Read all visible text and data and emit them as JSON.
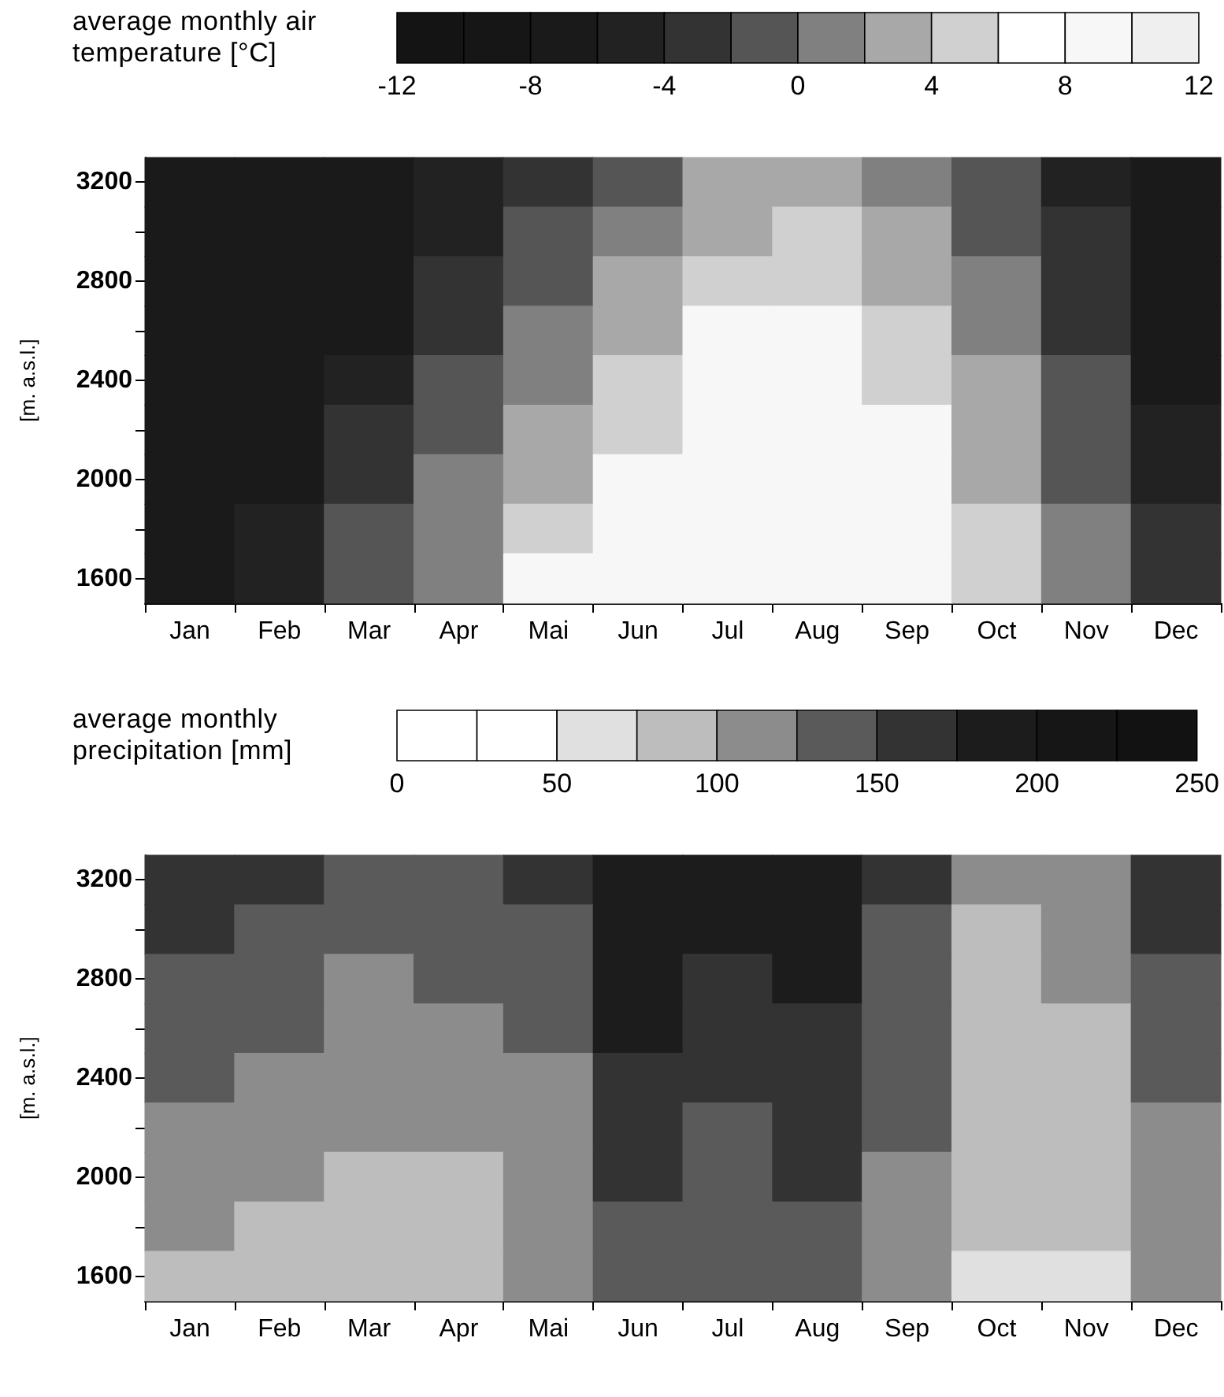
{
  "chart_data": [
    {
      "type": "heatmap",
      "clabel": "average monthly air temperature [°C]",
      "ylabel": "[m. a.s.l.]",
      "categories": [
        "Jan",
        "Feb",
        "Mar",
        "Apr",
        "Mai",
        "Jun",
        "Jul",
        "Aug",
        "Sep",
        "Oct",
        "Nov",
        "Dec"
      ],
      "y_categories": [
        "3200",
        null,
        "2800",
        null,
        "2400",
        null,
        "2000",
        null,
        "1600"
      ],
      "cells": [
        [
          -8,
          -8,
          -8,
          -5,
          -3,
          -1,
          3,
          3,
          1,
          -1,
          -5,
          -8
        ],
        [
          -8,
          -8,
          -8,
          -5,
          -1,
          1,
          3,
          5,
          3,
          -1,
          -3,
          -8
        ],
        [
          -8,
          -8,
          -8,
          -3,
          -1,
          3,
          5,
          5,
          3,
          1,
          -3,
          -8
        ],
        [
          -8,
          -8,
          -8,
          -3,
          1,
          3,
          9,
          9,
          5,
          1,
          -3,
          -8
        ],
        [
          -8,
          -8,
          -5,
          -1,
          1,
          5,
          9,
          9,
          5,
          3,
          -1,
          -8
        ],
        [
          -8,
          -8,
          -3,
          -1,
          3,
          5,
          9,
          9,
          9,
          3,
          -1,
          -5
        ],
        [
          -8,
          -8,
          -3,
          1,
          3,
          9,
          9,
          9,
          9,
          3,
          -1,
          -5
        ],
        [
          -8,
          -5,
          -1,
          1,
          5,
          9,
          9,
          9,
          9,
          5,
          1,
          -3
        ],
        [
          -8,
          -5,
          -1,
          1,
          9,
          9,
          9,
          9,
          9,
          5,
          1,
          -3
        ]
      ],
      "clim": [
        -12,
        12
      ],
      "cticks": [
        -12,
        -8,
        -4,
        0,
        4,
        8,
        12
      ],
      "colors": [
        "#141414",
        "#161616",
        "#1a1a1a",
        "#222222",
        "#333333",
        "#555555",
        "#808080",
        "#a8a8a8",
        "#d0d0d0",
        "#ffffff",
        "#f7f7f7",
        "#efefef"
      ]
    },
    {
      "type": "heatmap",
      "clabel": "average monthly precipitation [mm]",
      "ylabel": "[m. a.s.l.]",
      "categories": [
        "Jan",
        "Feb",
        "Mar",
        "Apr",
        "Mai",
        "Jun",
        "Jul",
        "Aug",
        "Sep",
        "Oct",
        "Nov",
        "Dec"
      ],
      "y_categories": [
        "3200",
        null,
        "2800",
        null,
        "2400",
        null,
        "2000",
        null,
        "1600"
      ],
      "cells": [
        [
          162,
          162,
          137,
          137,
          162,
          190,
          190,
          190,
          162,
          112,
          112,
          162
        ],
        [
          162,
          137,
          137,
          137,
          137,
          190,
          190,
          190,
          137,
          87,
          112,
          162
        ],
        [
          137,
          137,
          112,
          137,
          137,
          190,
          162,
          190,
          137,
          87,
          112,
          137
        ],
        [
          137,
          137,
          112,
          112,
          137,
          190,
          162,
          162,
          137,
          87,
          87,
          137
        ],
        [
          137,
          112,
          112,
          112,
          112,
          162,
          162,
          162,
          137,
          87,
          87,
          137
        ],
        [
          112,
          112,
          112,
          112,
          112,
          162,
          137,
          162,
          137,
          87,
          87,
          112
        ],
        [
          112,
          112,
          87,
          87,
          112,
          162,
          137,
          162,
          112,
          87,
          87,
          112
        ],
        [
          112,
          87,
          87,
          87,
          112,
          137,
          137,
          137,
          112,
          87,
          87,
          112
        ],
        [
          87,
          87,
          87,
          87,
          112,
          137,
          137,
          137,
          112,
          62,
          62,
          112
        ]
      ],
      "clim": [
        0,
        250
      ],
      "cticks": [
        0,
        50,
        100,
        150,
        200,
        250
      ],
      "colors": [
        "#ffffff",
        "#ffffff",
        "#e0e0e0",
        "#bdbdbd",
        "#8c8c8c",
        "#5a5a5a",
        "#333333",
        "#1c1c1c",
        "#161616",
        "#121212"
      ]
    }
  ]
}
